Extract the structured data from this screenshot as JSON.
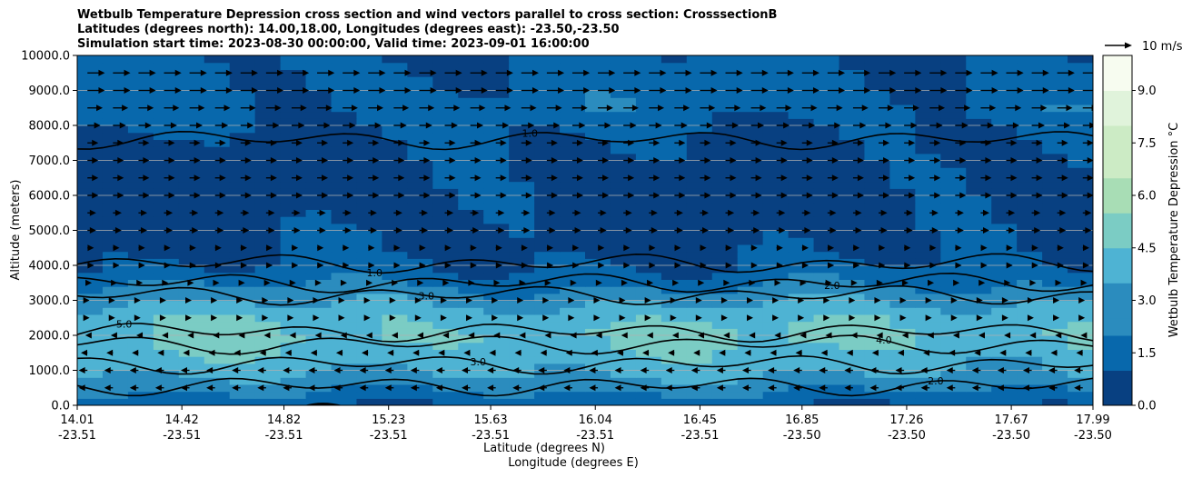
{
  "chart_data": {
    "type": "heatmap",
    "title": [
      "Wetbulb Temperature Depression cross section and wind vectors parallel to cross section: CrosssectionB",
      "Latitudes (degrees north): 14.00,18.00, Longitudes (degrees east): -23.50,-23.50",
      "Simulation start time: 2023-08-30 00:00:00, Valid time: 2023-09-01 16:00:00"
    ],
    "xlabel": [
      "Latitude (degrees N)",
      "Longitude (degrees E)"
    ],
    "ylabel": "Altitude (meters)",
    "colorbar_label": "Wetbulb Temperature Depression °C",
    "quiver_key": "10 m/s",
    "ylim": [
      0,
      10000
    ],
    "xlim": [
      14.01,
      17.99
    ],
    "x_ticks": [
      {
        "lat": "14.01",
        "lon": "-23.51",
        "v": 14.01
      },
      {
        "lat": "14.42",
        "lon": "-23.51",
        "v": 14.42
      },
      {
        "lat": "14.82",
        "lon": "-23.51",
        "v": 14.82
      },
      {
        "lat": "15.23",
        "lon": "-23.51",
        "v": 15.23
      },
      {
        "lat": "15.63",
        "lon": "-23.51",
        "v": 15.63
      },
      {
        "lat": "16.04",
        "lon": "-23.51",
        "v": 16.04
      },
      {
        "lat": "16.45",
        "lon": "-23.51",
        "v": 16.45
      },
      {
        "lat": "16.85",
        "lon": "-23.50",
        "v": 16.85
      },
      {
        "lat": "17.26",
        "lon": "-23.50",
        "v": 17.26
      },
      {
        "lat": "17.67",
        "lon": "-23.50",
        "v": 17.67
      },
      {
        "lat": "17.99",
        "lon": "-23.50",
        "v": 17.99
      }
    ],
    "y_ticks": [
      {
        "label": "0.0",
        "v": 0
      },
      {
        "label": "1000.0",
        "v": 1000
      },
      {
        "label": "2000.0",
        "v": 2000
      },
      {
        "label": "3000.0",
        "v": 3000
      },
      {
        "label": "4000.0",
        "v": 4000
      },
      {
        "label": "5000.0",
        "v": 5000
      },
      {
        "label": "6000.0",
        "v": 6000
      },
      {
        "label": "7000.0",
        "v": 7000
      },
      {
        "label": "8000.0",
        "v": 8000
      },
      {
        "label": "9000.0",
        "v": 9000
      },
      {
        "label": "10000.0",
        "v": 10000
      }
    ],
    "grid": "horizontal",
    "colorbar_ticks": [
      {
        "label": "0.0",
        "v": 0
      },
      {
        "label": "1.5",
        "v": 1.5
      },
      {
        "label": "3.0",
        "v": 3.0
      },
      {
        "label": "4.5",
        "v": 4.5
      },
      {
        "label": "6.0",
        "v": 6.0
      },
      {
        "label": "7.5",
        "v": 7.5
      },
      {
        "label": "9.0",
        "v": 9.0
      }
    ],
    "colorbar_range": [
      0,
      10
    ],
    "colors": [
      "#084081",
      "#0868ac",
      "#2b8cbe",
      "#4eb3d3",
      "#7bccc4",
      "#a8ddb5",
      "#ccebc5",
      "#e0f3db",
      "#f7fcf0"
    ],
    "depression_profile": [
      {
        "alt": 0,
        "value": 1.2
      },
      {
        "alt": 500,
        "value": 2.5
      },
      {
        "alt": 1000,
        "value": 3.6
      },
      {
        "alt": 2000,
        "value": 4.6
      },
      {
        "alt": 2600,
        "value": 4.0
      },
      {
        "alt": 3200,
        "value": 2.6
      },
      {
        "alt": 3800,
        "value": 1.4
      },
      {
        "alt": 4500,
        "value": 0.8
      },
      {
        "alt": 6000,
        "value": 0.6
      },
      {
        "alt": 7500,
        "value": 0.9
      },
      {
        "alt": 8500,
        "value": 1.6
      },
      {
        "alt": 10000,
        "value": 1.2
      }
    ],
    "contours": [
      {
        "label": "1.0",
        "alt": 4050
      },
      {
        "label": "2.0",
        "alt": 3500
      },
      {
        "label": "3.0",
        "alt": 3150
      },
      {
        "label": "4.0",
        "alt": 1750
      },
      {
        "label": "3.0",
        "alt": 1180
      },
      {
        "label": "2.0",
        "alt": 560
      },
      {
        "label": "1.0",
        "alt": 7600
      },
      {
        "label": "5.0",
        "alt": 2100
      }
    ],
    "wind_levels": [
      {
        "alt": 9500,
        "u": 8
      },
      {
        "alt": 9000,
        "u": 8
      },
      {
        "alt": 8500,
        "u": 7
      },
      {
        "alt": 8000,
        "u": 6
      },
      {
        "alt": 7500,
        "u": 5
      },
      {
        "alt": 7000,
        "u": 5
      },
      {
        "alt": 6500,
        "u": 5
      },
      {
        "alt": 6000,
        "u": 5
      },
      {
        "alt": 5500,
        "u": 4
      },
      {
        "alt": 5000,
        "u": 4
      },
      {
        "alt": 4500,
        "u": 3
      },
      {
        "alt": 4000,
        "u": 3
      },
      {
        "alt": 3500,
        "u": 2
      },
      {
        "alt": 3000,
        "u": 1
      },
      {
        "alt": 2500,
        "u": 1
      },
      {
        "alt": 2000,
        "u": -1
      },
      {
        "alt": 1500,
        "u": -3
      },
      {
        "alt": 1000,
        "u": -4
      },
      {
        "alt": 500,
        "u": -4
      }
    ]
  }
}
